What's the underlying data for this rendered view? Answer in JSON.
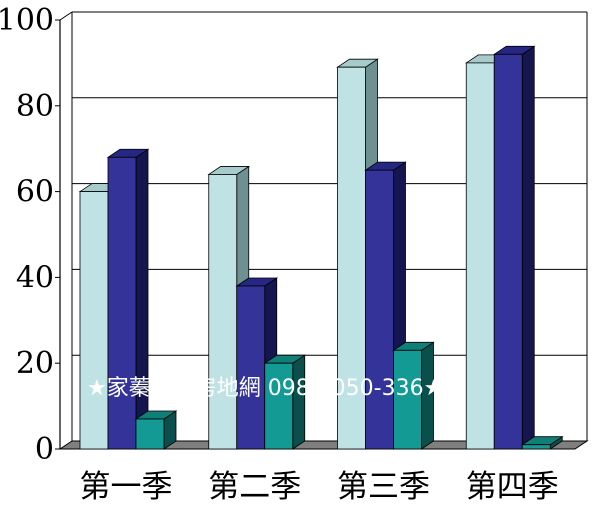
{
  "chart_data": {
    "type": "bar",
    "title": "",
    "xlabel": "",
    "ylabel": "",
    "categories": [
      "第一季",
      "第二季",
      "第三季",
      "第四季"
    ],
    "series": [
      {
        "values": [
          60,
          64,
          89,
          90
        ]
      },
      {
        "values": [
          68,
          38,
          65,
          92
        ]
      },
      {
        "values": [
          7,
          20,
          23,
          1
        ]
      }
    ],
    "ylim": [
      0,
      100
    ],
    "yticks": [
      "0",
      "20",
      "40",
      "60",
      "80",
      "100"
    ],
    "grid": true,
    "colors": {
      "series_front": [
        "#bfe3e5",
        "#33339a",
        "#139a94"
      ],
      "series_top": [
        "#a7caca",
        "#262683",
        "#0f7f78"
      ],
      "series_side": [
        "#6f9090",
        "#15154f",
        "#0a4f4c"
      ],
      "floor": "#7f7f7f",
      "grid": "#000000"
    },
    "watermark": "★家蓁桃園房地網 0987-050-336★"
  }
}
